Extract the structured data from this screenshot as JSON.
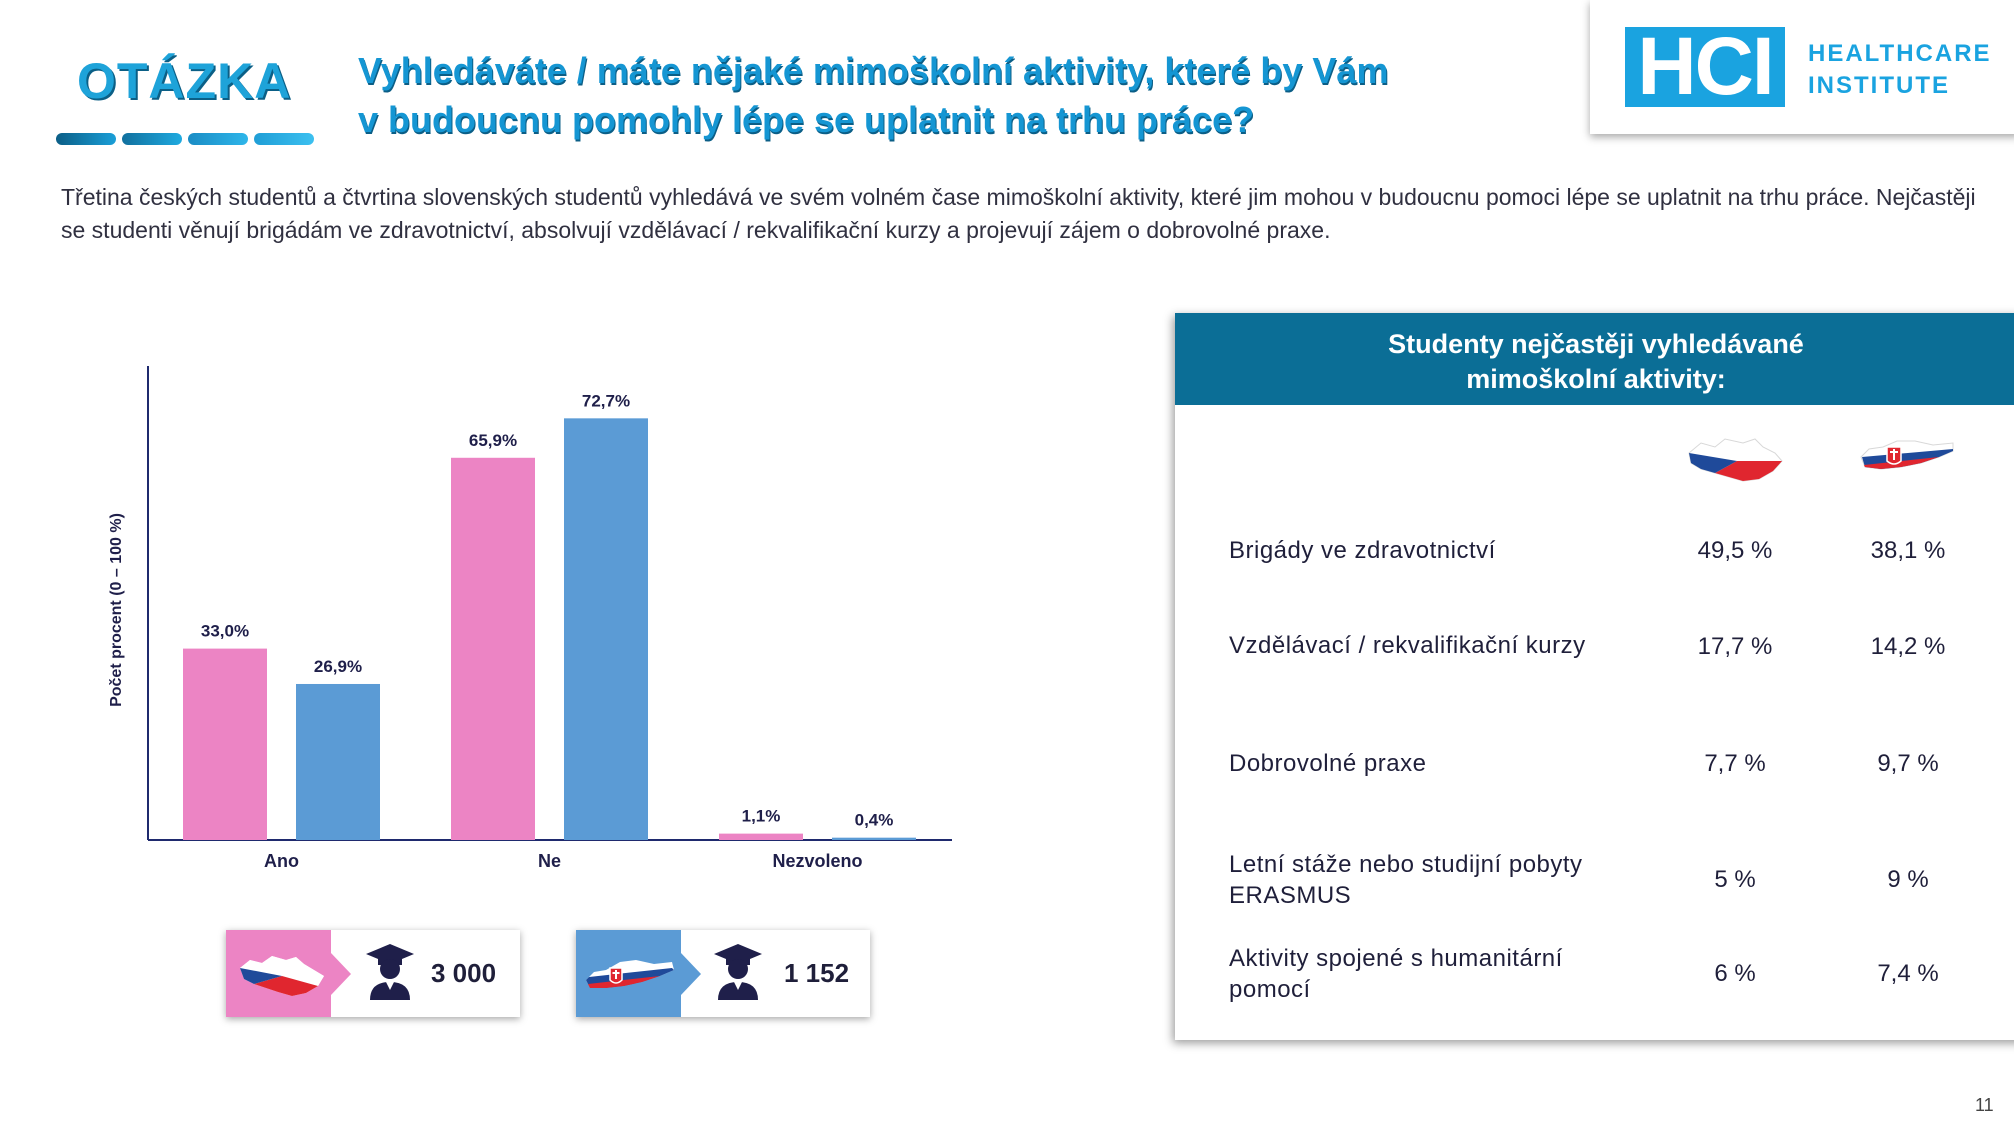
{
  "header": {
    "section_label": "OTÁZKA",
    "title_line1": "Vyhledáváte / máte nějaké mimoškolní aktivity, které by Vám",
    "title_line2": "v budoucnu pomohly lépe se uplatnit na trhu práce?",
    "logo_text": "HCI",
    "logo_name_line1": "HEALTHCARE",
    "logo_name_line2": "INSTITUTE"
  },
  "summary": "Třetina českých studentů a čtvrtina slovenských studentů vyhledává ve svém volném čase mimoškolní aktivity, které jim mohou v budoucnu pomoci lépe se uplatnit na trhu práce. Nejčastěji se studenti věnují brigádám ve zdravotnictví, absolvují vzdělávací / rekvalifikační kurzy a projevují zájem o dobrovolné praxe.",
  "chart_data": {
    "type": "bar",
    "ylabel": "Počet procent  (0 – 100 %)",
    "ylim": [
      0,
      80
    ],
    "categories": [
      "Ano",
      "Ne",
      "Nezvoleno"
    ],
    "series": [
      {
        "values": [
          33.0,
          65.9,
          1.1
        ],
        "labels": [
          "33,0%",
          "65,9%",
          "1,1%"
        ],
        "color": "#ec84c4"
      },
      {
        "values": [
          26.9,
          72.7,
          0.4
        ],
        "labels": [
          "26,9%",
          "72,7%",
          "0,4%"
        ],
        "color": "#5b9bd5"
      }
    ],
    "axis_color": "#1f2a6e"
  },
  "legend": {
    "cz_count": "3 000",
    "sk_count": "1 152",
    "cz_color": "#ec84c4",
    "sk_color": "#5b9bd5"
  },
  "table": {
    "heading_line1": "Studenty nejčastěji vyhledávané",
    "heading_line2": "mimoškolní aktivity:",
    "rows": [
      {
        "label_line1": "Brigády ve zdravotnictví",
        "label_line2": "",
        "cz": "49,5 %",
        "sk": "38,1 %"
      },
      {
        "label_line1": "Vzdělávací / rekvalifikační kurzy",
        "label_line2": "",
        "cz": "17,7 %",
        "sk": "14,2 %"
      },
      {
        "label_line1": "Dobrovolné praxe",
        "label_line2": "",
        "cz": "7,7 %",
        "sk": "9,7 %"
      },
      {
        "label_line1": "Letní stáže nebo studijní pobyty",
        "label_line2": "ERASMUS",
        "cz": "5 %",
        "sk": "9 %"
      },
      {
        "label_line1": "Aktivity spojené s humanitární",
        "label_line2": "pomocí",
        "cz": "6 %",
        "sk": "7,4 %"
      }
    ]
  },
  "page_number": "11"
}
